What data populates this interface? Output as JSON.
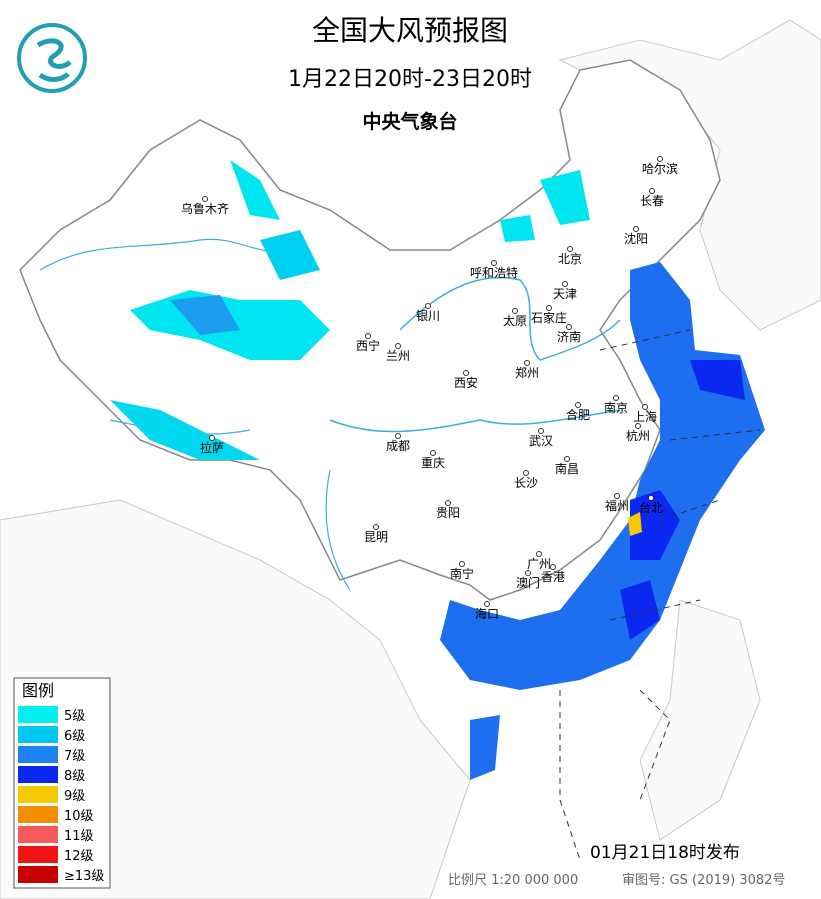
{
  "header": {
    "title": "全国大风预报图",
    "subtitle": "1月22日20时-23日20时",
    "issuer": "中央气象台"
  },
  "cities": [
    "哈尔滨",
    "长春",
    "沈阳",
    "乌鲁木齐",
    "北京",
    "天津",
    "呼和浩特",
    "银川",
    "太原",
    "石家庄",
    "济南",
    "西宁",
    "兰州",
    "郑州",
    "西安",
    "南京",
    "合肥",
    "上海",
    "杭州",
    "成都",
    "武汉",
    "重庆",
    "南昌",
    "长沙",
    "拉萨",
    "贵阳",
    "福州",
    "台北",
    "昆明",
    "广州",
    "南宁",
    "澳门",
    "香港",
    "海口"
  ],
  "legend": {
    "title": "图例",
    "items": [
      {
        "label": "5级",
        "color": "#00f0f0"
      },
      {
        "label": "6级",
        "color": "#00c8f0"
      },
      {
        "label": "7级",
        "color": "#1e82f0"
      },
      {
        "label": "8级",
        "color": "#0a28f0"
      },
      {
        "label": "9级",
        "color": "#f5c800"
      },
      {
        "label": "10级",
        "color": "#f58c00"
      },
      {
        "label": "11级",
        "color": "#f55a5a"
      },
      {
        "label": "12级",
        "color": "#f01414"
      },
      {
        "label": "≥13级",
        "color": "#c80000"
      }
    ]
  },
  "footer": {
    "published": "01月21日18时发布",
    "scale": "比例尺 1:20 000 000",
    "map_number": "审图号: GS (2019) 3082号"
  }
}
